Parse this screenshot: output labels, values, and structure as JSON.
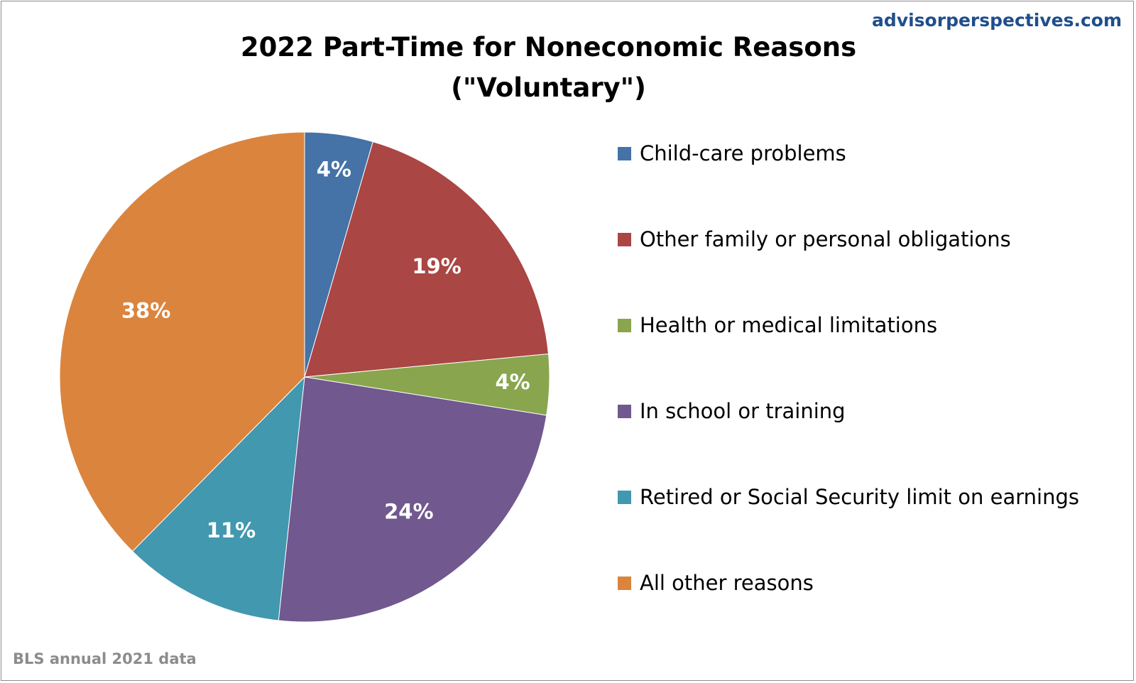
{
  "brand": "advisorperspectives.com",
  "source": "BLS annual 2021 data",
  "chart_data": {
    "type": "pie",
    "title_lines": [
      "2022 Part-Time for Noneconomic Reasons",
      "(\"Voluntary\")"
    ],
    "legend_position": "right",
    "slices": [
      {
        "name": "Child-care problems",
        "value": 4.5,
        "label": "4%",
        "color": "#4572a7"
      },
      {
        "name": "Other family or personal obligations",
        "value": 19.0,
        "label": "19%",
        "color": "#aa4643"
      },
      {
        "name": "Health or medical limitations",
        "value": 4.0,
        "label": "4%",
        "color": "#89a54e"
      },
      {
        "name": "In school or training",
        "value": 24.2,
        "label": "24%",
        "color": "#71588f"
      },
      {
        "name": "Retired or Social Security limit on earnings",
        "value": 10.7,
        "label": "11%",
        "color": "#4198af"
      },
      {
        "name": "All other reasons",
        "value": 37.6,
        "label": "38%",
        "color": "#db843d"
      }
    ]
  }
}
